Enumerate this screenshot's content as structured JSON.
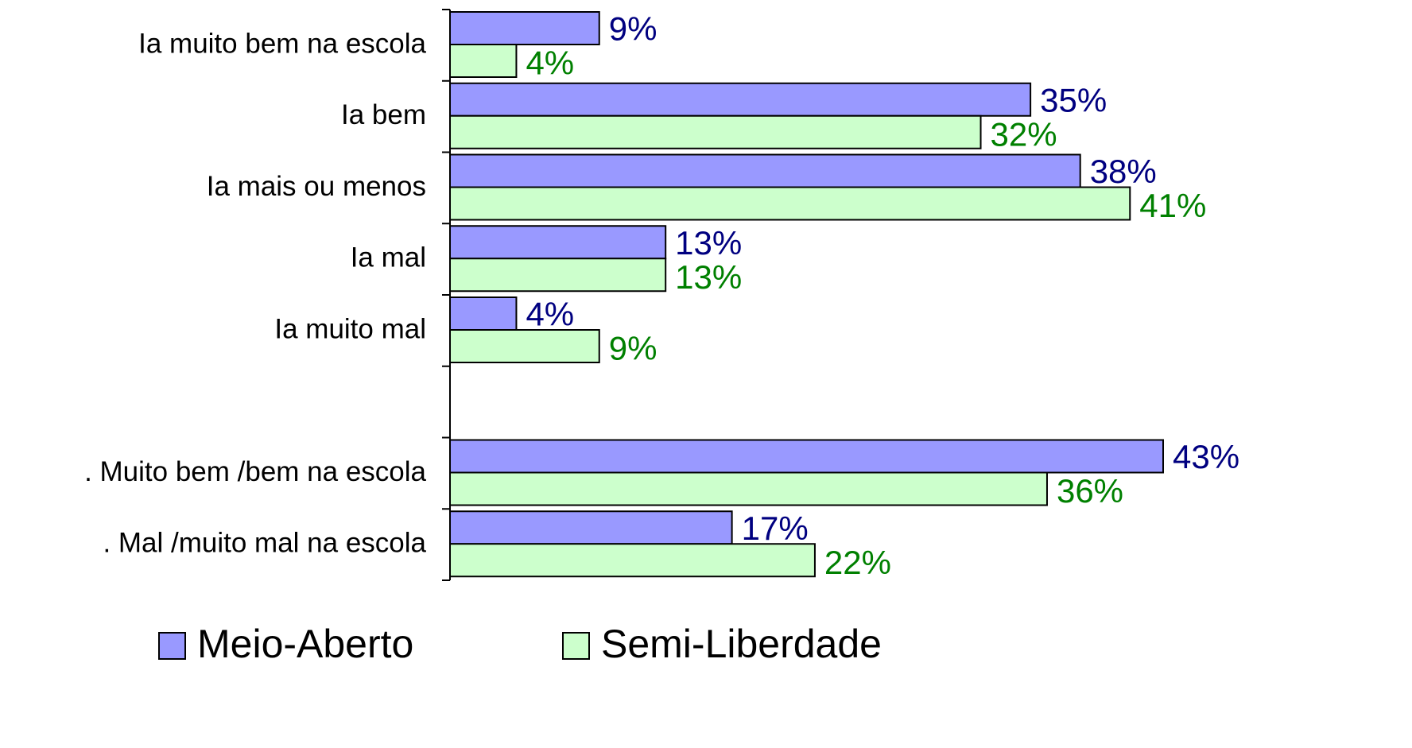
{
  "chart_data": {
    "type": "hbar",
    "categories": [
      "Ia muito bem na escola",
      "Ia bem",
      "Ia mais ou menos",
      "Ia mal",
      "Ia muito mal",
      null,
      ". Muito bem /bem na escola",
      ". Mal /muito mal na escola"
    ],
    "series": [
      {
        "name": "Meio-Aberto",
        "color": "#9999ff",
        "label_color": "#000080",
        "values": [
          9,
          35,
          38,
          13,
          4,
          null,
          43,
          17
        ],
        "value_labels": [
          "9%",
          "35%",
          "38%",
          "13%",
          "4%",
          null,
          "43%",
          "17%"
        ]
      },
      {
        "name": "Semi-Liberdade",
        "color": "#ccffcc",
        "label_color": "#008000",
        "values": [
          4,
          32,
          41,
          13,
          9,
          null,
          36,
          22
        ],
        "value_labels": [
          "4%",
          "32%",
          "41%",
          "13%",
          "9%",
          null,
          "36%",
          "22%"
        ]
      }
    ],
    "legend": "bottom"
  }
}
